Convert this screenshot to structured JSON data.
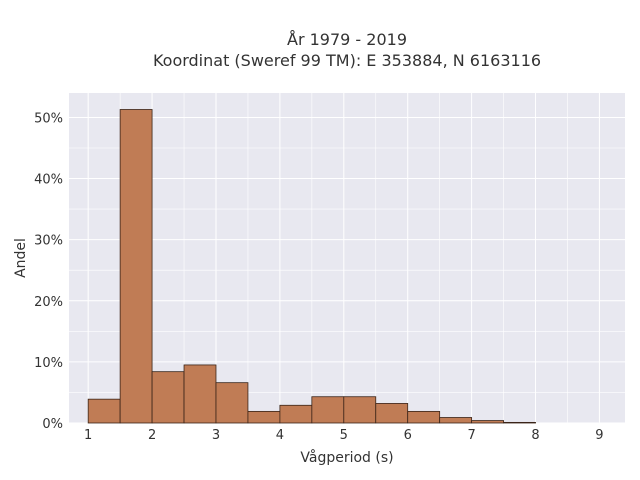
{
  "chart_data": {
    "type": "bar",
    "title_lines": [
      "År 1979 - 2019",
      "Koordinat (Sweref 99 TM): E 353884, N 6163116"
    ],
    "xlabel": "Vågperiod (s)",
    "ylabel": "Andel",
    "x_ticks": [
      "1",
      "2",
      "3",
      "4",
      "5",
      "6",
      "7",
      "8",
      "9"
    ],
    "y_ticks": [
      "0%",
      "10%",
      "20%",
      "30%",
      "40%",
      "50%"
    ],
    "xlim": [
      0.7,
      9.4
    ],
    "ylim": [
      0,
      54
    ],
    "grid": true,
    "bin_width": 0.5,
    "bins": [
      {
        "x0": 1.0,
        "value": 3.9
      },
      {
        "x0": 1.5,
        "value": 51.3
      },
      {
        "x0": 2.0,
        "value": 8.4
      },
      {
        "x0": 2.5,
        "value": 9.5
      },
      {
        "x0": 3.0,
        "value": 6.6
      },
      {
        "x0": 3.5,
        "value": 1.9
      },
      {
        "x0": 4.0,
        "value": 2.9
      },
      {
        "x0": 4.5,
        "value": 4.3
      },
      {
        "x0": 5.0,
        "value": 4.3
      },
      {
        "x0": 5.5,
        "value": 3.2
      },
      {
        "x0": 6.0,
        "value": 1.9
      },
      {
        "x0": 6.5,
        "value": 0.9
      },
      {
        "x0": 7.0,
        "value": 0.4
      },
      {
        "x0": 7.5,
        "value": 0.1
      }
    ],
    "colors": {
      "bar": "#c07c55",
      "edge": "#3a2418",
      "plot_bg": "#e8e8f0",
      "grid": "#ffffff"
    }
  }
}
